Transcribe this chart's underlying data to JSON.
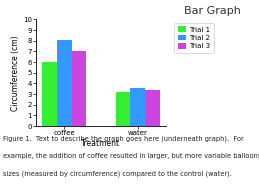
{
  "title": "Bar Graph",
  "xlabel": "Treatment",
  "ylabel": "Circumference (cm)",
  "categories": [
    "coffee",
    "water"
  ],
  "series": [
    {
      "label": "Trial 1",
      "color": "#33ee33",
      "values": [
        6.0,
        3.2
      ]
    },
    {
      "label": "Trial 2",
      "color": "#3399ff",
      "values": [
        8.1,
        3.6
      ]
    },
    {
      "label": "Trial 3",
      "color": "#cc44dd",
      "values": [
        7.0,
        3.4
      ]
    }
  ],
  "ylim": [
    0,
    10
  ],
  "yticks": [
    0,
    1,
    2,
    3,
    4,
    5,
    6,
    7,
    8,
    9,
    10
  ],
  "bar_width": 0.2,
  "background_color": "#ffffff",
  "caption_line1": "Figure 1.  Text to describe the graph goes here (underneath graph).  For",
  "caption_line2": "example, the addition of coffee resulted in larger, but more variable balloons",
  "caption_line3": "sizes (measured by circumference) compared to the control (water).",
  "title_fontsize": 8,
  "axis_label_fontsize": 5.5,
  "tick_fontsize": 5,
  "legend_fontsize": 5,
  "caption_fontsize": 4.8
}
